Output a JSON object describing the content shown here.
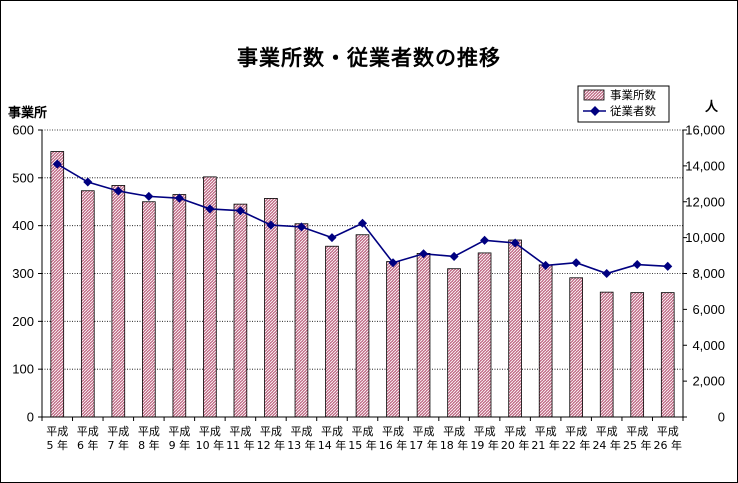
{
  "chart_data": {
    "type": "bar+line",
    "title": "事業所数・従業者数の推移",
    "y_left_label": "事業所",
    "y_right_label": "人",
    "ylim_left": [
      0,
      600
    ],
    "ylim_right": [
      0,
      16000
    ],
    "y_left_ticks": [
      0,
      100,
      200,
      300,
      400,
      500,
      600
    ],
    "y_right_ticks": [
      "0",
      "2,000",
      "4,000",
      "6,000",
      "8,000",
      "10,000",
      "12,000",
      "14,000",
      "16,000"
    ],
    "grid": true,
    "legend_position": "top-right",
    "categories": [
      [
        "平成",
        "5 年"
      ],
      [
        "平成",
        "6 年"
      ],
      [
        "平成",
        "7 年"
      ],
      [
        "平成",
        "8 年"
      ],
      [
        "平成",
        "9 年"
      ],
      [
        "平成",
        "10 年"
      ],
      [
        "平成",
        "11 年"
      ],
      [
        "平成",
        "12 年"
      ],
      [
        "平成",
        "13 年"
      ],
      [
        "平成",
        "14 年"
      ],
      [
        "平成",
        "15 年"
      ],
      [
        "平成",
        "16 年"
      ],
      [
        "平成",
        "17 年"
      ],
      [
        "平成",
        "18 年"
      ],
      [
        "平成",
        "19 年"
      ],
      [
        "平成",
        "20 年"
      ],
      [
        "平成",
        "21 年"
      ],
      [
        "平成",
        "22 年"
      ],
      [
        "平成",
        "24 年"
      ],
      [
        "平成",
        "25 年"
      ],
      [
        "平成",
        "26 年"
      ]
    ],
    "series": [
      {
        "name": "事業所数",
        "type": "bar",
        "axis": "left",
        "values": [
          555,
          473,
          484,
          450,
          465,
          502,
          445,
          457,
          404,
          357,
          381,
          325,
          342,
          310,
          343,
          370,
          318,
          291,
          261,
          260,
          260
        ]
      },
      {
        "name": "従業者数",
        "type": "line",
        "axis": "right",
        "values": [
          14100,
          13100,
          12600,
          12300,
          12200,
          11600,
          11500,
          10700,
          10600,
          10000,
          10800,
          8600,
          9100,
          8950,
          9850,
          9700,
          8450,
          8600,
          8000,
          8500,
          8400
        ]
      }
    ],
    "colors": {
      "bar_fill": "#c2708a",
      "bar_hatch": "#ffffff",
      "line": "#000080",
      "grid": "#000000"
    }
  }
}
